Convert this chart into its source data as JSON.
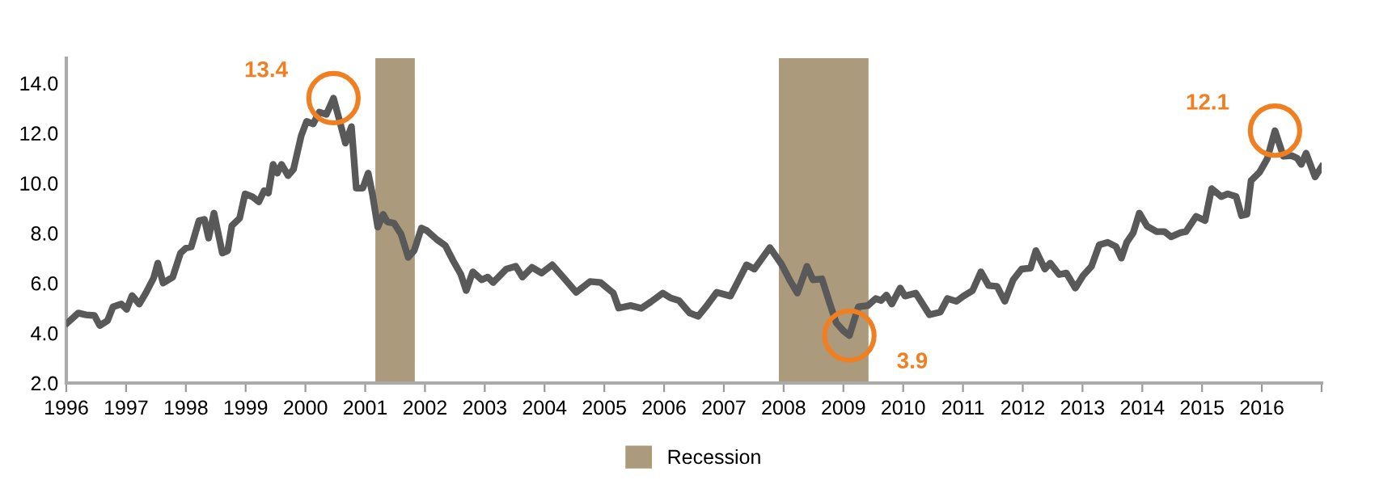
{
  "chart_data": {
    "type": "line",
    "xlim": [
      1996,
      2017
    ],
    "xticks": [
      1996,
      1997,
      1998,
      1999,
      2000,
      2001,
      2002,
      2003,
      2004,
      2005,
      2006,
      2007,
      2008,
      2009,
      2010,
      2011,
      2012,
      2013,
      2014,
      2015,
      2016,
      {
        "value": 2017,
        "label": null
      }
    ],
    "ylim": [
      2,
      15
    ],
    "yticks": [
      {
        "value": 2,
        "label": "2.0"
      },
      {
        "value": 4,
        "label": "4.0"
      },
      {
        "value": 6,
        "label": "6.0"
      },
      {
        "value": 8,
        "label": "8.0"
      },
      {
        "value": 10,
        "label": "10.0"
      },
      {
        "value": 12,
        "label": "12.0"
      },
      {
        "value": 14,
        "label": "14.0"
      }
    ],
    "grid": false,
    "legend": "bottom",
    "bands": [
      {
        "axis": "x",
        "from": 2001.17,
        "to": 2001.83,
        "label": "Recession",
        "color": "#ab9b7c"
      },
      {
        "axis": "x",
        "from": 2007.92,
        "to": 2009.42,
        "color": "#ab9b7c"
      }
    ],
    "annotations": [
      {
        "text": "13.4",
        "x": 2000.47,
        "y": 13.4
      },
      {
        "text": "3.9",
        "x": 2009.1,
        "y": 3.9
      },
      {
        "text": "12.1",
        "x": 2016.22,
        "y": 12.1
      }
    ],
    "series": [
      {
        "color": "#595959",
        "x": [
          1996.02,
          1996.2,
          1996.33,
          1996.47,
          1996.56,
          1996.69,
          1996.78,
          1996.92,
          1997.01,
          1997.1,
          1997.22,
          1997.33,
          1997.46,
          1997.53,
          1997.62,
          1997.78,
          1997.91,
          1998.0,
          1998.09,
          1998.22,
          1998.31,
          1998.38,
          1998.47,
          1998.61,
          1998.7,
          1998.77,
          1998.9,
          1998.99,
          1999.11,
          1999.22,
          1999.31,
          1999.38,
          1999.46,
          1999.53,
          1999.6,
          1999.71,
          1999.8,
          1999.93,
          2000.02,
          2000.13,
          2000.23,
          2000.35,
          2000.47,
          2000.56,
          2000.67,
          2000.77,
          2000.85,
          2000.96,
          2001.05,
          2001.12,
          2001.21,
          2001.3,
          2001.37,
          2001.48,
          2001.6,
          2001.72,
          2001.82,
          2001.94,
          2002.03,
          2002.2,
          2002.34,
          2002.47,
          2002.6,
          2002.69,
          2002.8,
          2002.95,
          2003.05,
          2003.14,
          2003.36,
          2003.52,
          2003.63,
          2003.79,
          2003.95,
          2004.13,
          2004.35,
          2004.53,
          2004.76,
          2004.94,
          2005.15,
          2005.24,
          2005.44,
          2005.62,
          2005.78,
          2005.98,
          2006.11,
          2006.25,
          2006.43,
          2006.57,
          2006.7,
          2006.88,
          2007.11,
          2007.38,
          2007.51,
          2007.77,
          2007.96,
          2008.1,
          2008.23,
          2008.39,
          2008.49,
          2008.64,
          2008.76,
          2008.88,
          2009.0,
          2009.1,
          2009.25,
          2009.41,
          2009.54,
          2009.63,
          2009.72,
          2009.81,
          2009.95,
          2010.03,
          2010.21,
          2010.44,
          2010.62,
          2010.74,
          2010.89,
          2011.01,
          2011.16,
          2011.3,
          2011.43,
          2011.57,
          2011.7,
          2011.84,
          2011.98,
          2012.13,
          2012.22,
          2012.37,
          2012.46,
          2012.61,
          2012.73,
          2012.88,
          2013.01,
          2013.15,
          2013.28,
          2013.42,
          2013.56,
          2013.65,
          2013.74,
          2013.85,
          2013.95,
          2014.08,
          2014.24,
          2014.37,
          2014.48,
          2014.64,
          2014.73,
          2014.9,
          2015.05,
          2015.16,
          2015.32,
          2015.43,
          2015.57,
          2015.66,
          2015.75,
          2015.82,
          2015.96,
          2016.09,
          2016.22,
          2016.36,
          2016.5,
          2016.59,
          2016.66,
          2016.74,
          2016.89,
          2017.0
        ],
        "values": [
          4.41,
          4.8,
          4.73,
          4.7,
          4.3,
          4.5,
          5.05,
          5.16,
          4.95,
          5.5,
          5.16,
          5.6,
          6.2,
          6.8,
          6.0,
          6.24,
          7.2,
          7.4,
          7.45,
          8.5,
          8.55,
          7.8,
          8.8,
          7.2,
          7.3,
          8.3,
          8.6,
          9.57,
          9.46,
          9.25,
          9.7,
          9.6,
          10.75,
          10.4,
          10.75,
          10.3,
          10.55,
          11.9,
          12.47,
          12.37,
          12.84,
          12.75,
          13.4,
          12.6,
          11.6,
          12.26,
          9.8,
          9.8,
          10.4,
          9.57,
          8.24,
          8.75,
          8.45,
          8.4,
          7.96,
          7.03,
          7.3,
          8.2,
          8.1,
          7.74,
          7.5,
          6.9,
          6.35,
          5.7,
          6.45,
          6.13,
          6.24,
          6.02,
          6.56,
          6.67,
          6.24,
          6.63,
          6.4,
          6.73,
          6.13,
          5.63,
          6.06,
          6.02,
          5.6,
          5.0,
          5.1,
          4.99,
          5.25,
          5.6,
          5.4,
          5.3,
          4.8,
          4.67,
          5.05,
          5.63,
          5.48,
          6.73,
          6.56,
          7.42,
          6.77,
          6.13,
          5.6,
          6.67,
          6.13,
          6.17,
          5.27,
          4.41,
          4.09,
          3.9,
          5.05,
          5.1,
          5.38,
          5.3,
          5.52,
          5.16,
          5.8,
          5.48,
          5.6,
          4.73,
          4.84,
          5.38,
          5.27,
          5.48,
          5.7,
          6.45,
          5.9,
          5.87,
          5.27,
          6.13,
          6.56,
          6.6,
          7.3,
          6.56,
          6.8,
          6.34,
          6.4,
          5.8,
          6.3,
          6.67,
          7.53,
          7.63,
          7.46,
          7.0,
          7.63,
          8.02,
          8.8,
          8.28,
          8.06,
          8.06,
          7.85,
          8.02,
          8.06,
          8.67,
          8.5,
          9.78,
          9.46,
          9.57,
          9.46,
          8.7,
          8.75,
          10.1,
          10.43,
          10.97,
          12.1,
          11.08,
          11.1,
          11.0,
          10.75,
          11.2,
          10.25,
          10.65
        ]
      }
    ]
  }
}
